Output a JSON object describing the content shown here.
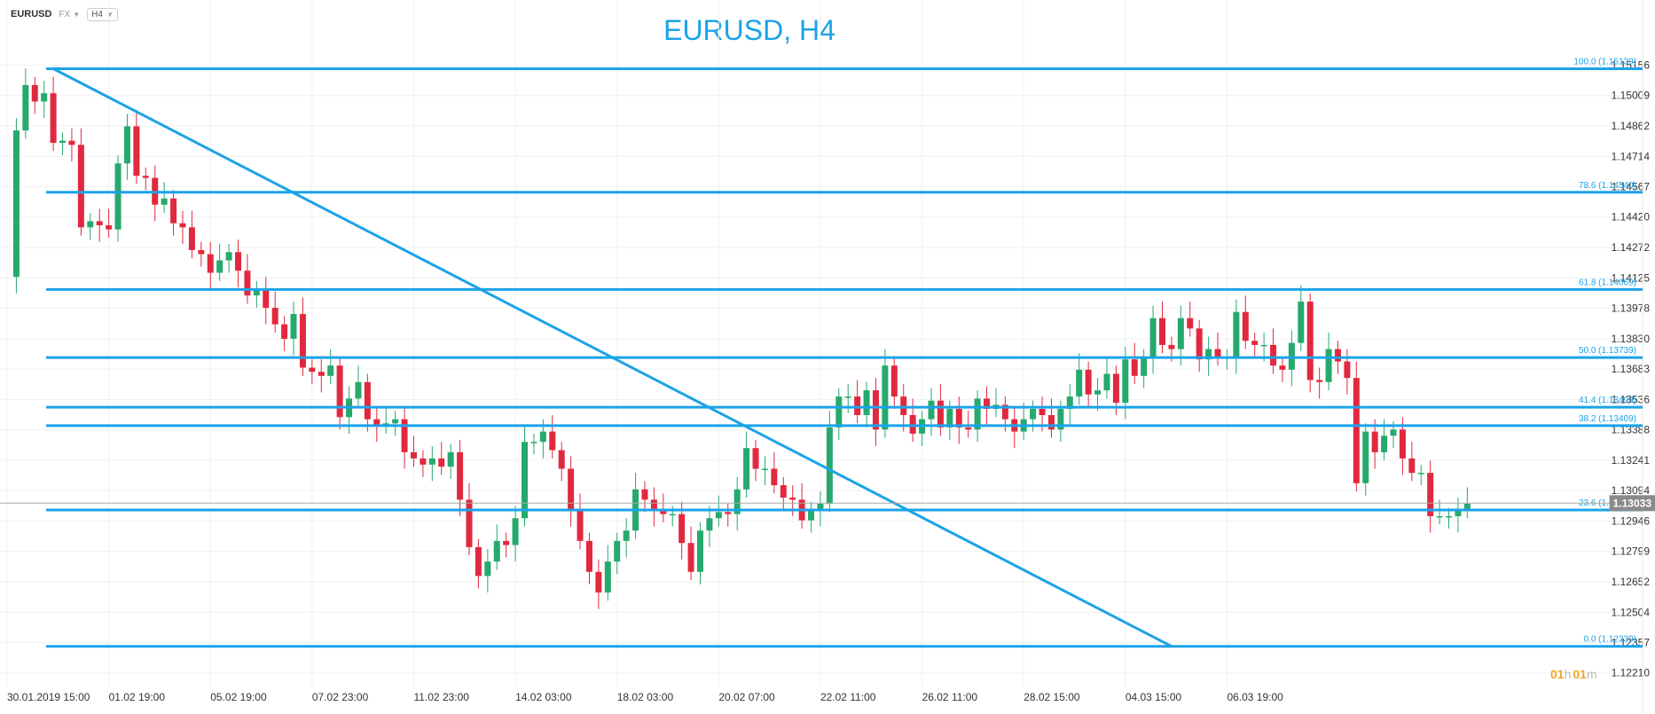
{
  "header": {
    "symbol": "EURUSD",
    "market": "FX",
    "timeframe": "H4"
  },
  "countdown": {
    "hours": "01",
    "hours_unit": "h",
    "minutes": "01",
    "minutes_unit": "m"
  },
  "chart_data": {
    "type": "candlestick",
    "title": "EURUSD, H4",
    "ylim": [
      1.1214,
      1.1524
    ],
    "y_ticks": [
      "1.15156",
      "1.15009",
      "1.14862",
      "1.14714",
      "1.14567",
      "1.14420",
      "1.14272",
      "1.14125",
      "1.13978",
      "1.13830",
      "1.13683",
      "1.13536",
      "1.13388",
      "1.13241",
      "1.13094",
      "1.12946",
      "1.12799",
      "1.12652",
      "1.12504",
      "1.12357",
      "1.12210"
    ],
    "x_ticks": [
      "30.01.2019  15:00",
      "01.02  19:00",
      "05.02  19:00",
      "07.02  23:00",
      "11.02  23:00",
      "14.02  03:00",
      "18.02  03:00",
      "20.02  07:00",
      "22.02  11:00",
      "26.02  11:00",
      "28.02  15:00",
      "04.03  15:00",
      "06.03  19:00"
    ],
    "current_price": "1.13033",
    "current_price_value": 1.13033,
    "fibonacci": [
      {
        "label": "100.0 (1.15139)",
        "value": 1.15139
      },
      {
        "label": "78.6 (1.14540)",
        "value": 1.1454
      },
      {
        "label": "61.8 (1.14069)",
        "value": 1.14069
      },
      {
        "label": "50.0 (1.13739)",
        "value": 1.13739
      },
      {
        "label": "41.4 (1.13498)",
        "value": 1.13498
      },
      {
        "label": "38.2 (1.13409)",
        "value": 1.13409
      },
      {
        "label": "23.6 (1.13000)",
        "value": 1.13
      },
      {
        "label": "0.0 (1.12339)",
        "value": 1.12339
      }
    ],
    "trendline": {
      "from_index": 5,
      "from_price": 1.15139,
      "to_index": 126,
      "to_price": 1.12339
    },
    "colors": {
      "up": "#26a96c",
      "down": "#e0293f",
      "fib": "#1ba3e8",
      "current_badge": "#8a8a8a"
    },
    "closes": [
      1.1413,
      1.1484,
      1.1506,
      1.1498,
      1.1502,
      1.1478,
      1.1479,
      1.1477,
      1.1437,
      1.144,
      1.1438,
      1.1436,
      1.1468,
      1.1486,
      1.1462,
      1.1461,
      1.1448,
      1.1451,
      1.1439,
      1.1437,
      1.1426,
      1.1424,
      1.1415,
      1.1421,
      1.1425,
      1.1416,
      1.1404,
      1.1407,
      1.1398,
      1.139,
      1.1383,
      1.1395,
      1.1369,
      1.1367,
      1.1365,
      1.137,
      1.1345,
      1.1354,
      1.1362,
      1.1344,
      1.1341,
      1.1342,
      1.1344,
      1.1328,
      1.1325,
      1.1322,
      1.1325,
      1.1321,
      1.1328,
      1.1305,
      1.1282,
      1.1268,
      1.1275,
      1.1285,
      1.1283,
      1.1296,
      1.1333,
      1.1333,
      1.1338,
      1.1329,
      1.132,
      1.13,
      1.1285,
      1.127,
      1.126,
      1.1275,
      1.1285,
      1.129,
      1.131,
      1.1305,
      1.13,
      1.1298,
      1.1298,
      1.1284,
      1.127,
      1.129,
      1.1296,
      1.1299,
      1.1298,
      1.131,
      1.133,
      1.132,
      1.132,
      1.1312,
      1.1306,
      1.1305,
      1.1295,
      1.13,
      1.1303,
      1.134,
      1.1355,
      1.1355,
      1.1346,
      1.1358,
      1.1339,
      1.137,
      1.1355,
      1.1346,
      1.1337,
      1.1344,
      1.1353,
      1.134,
      1.1349,
      1.134,
      1.1339,
      1.1354,
      1.1349,
      1.1351,
      1.1344,
      1.1338,
      1.1344,
      1.1349,
      1.1346,
      1.1339,
      1.1349,
      1.1355,
      1.1368,
      1.1356,
      1.1358,
      1.1366,
      1.1352,
      1.1373,
      1.1365,
      1.1374,
      1.1393,
      1.138,
      1.1378,
      1.1393,
      1.1388,
      1.1373,
      1.1378,
      1.1374,
      1.1374,
      1.1396,
      1.1382,
      1.138,
      1.138,
      1.137,
      1.1368,
      1.1381,
      1.1401,
      1.1363,
      1.1362,
      1.1378,
      1.1372,
      1.1364,
      1.1313,
      1.1338,
      1.1328,
      1.1336,
      1.1339,
      1.1325,
      1.1318,
      1.1318,
      1.1297,
      1.1297,
      1.1297,
      1.13,
      1.1303
    ]
  }
}
